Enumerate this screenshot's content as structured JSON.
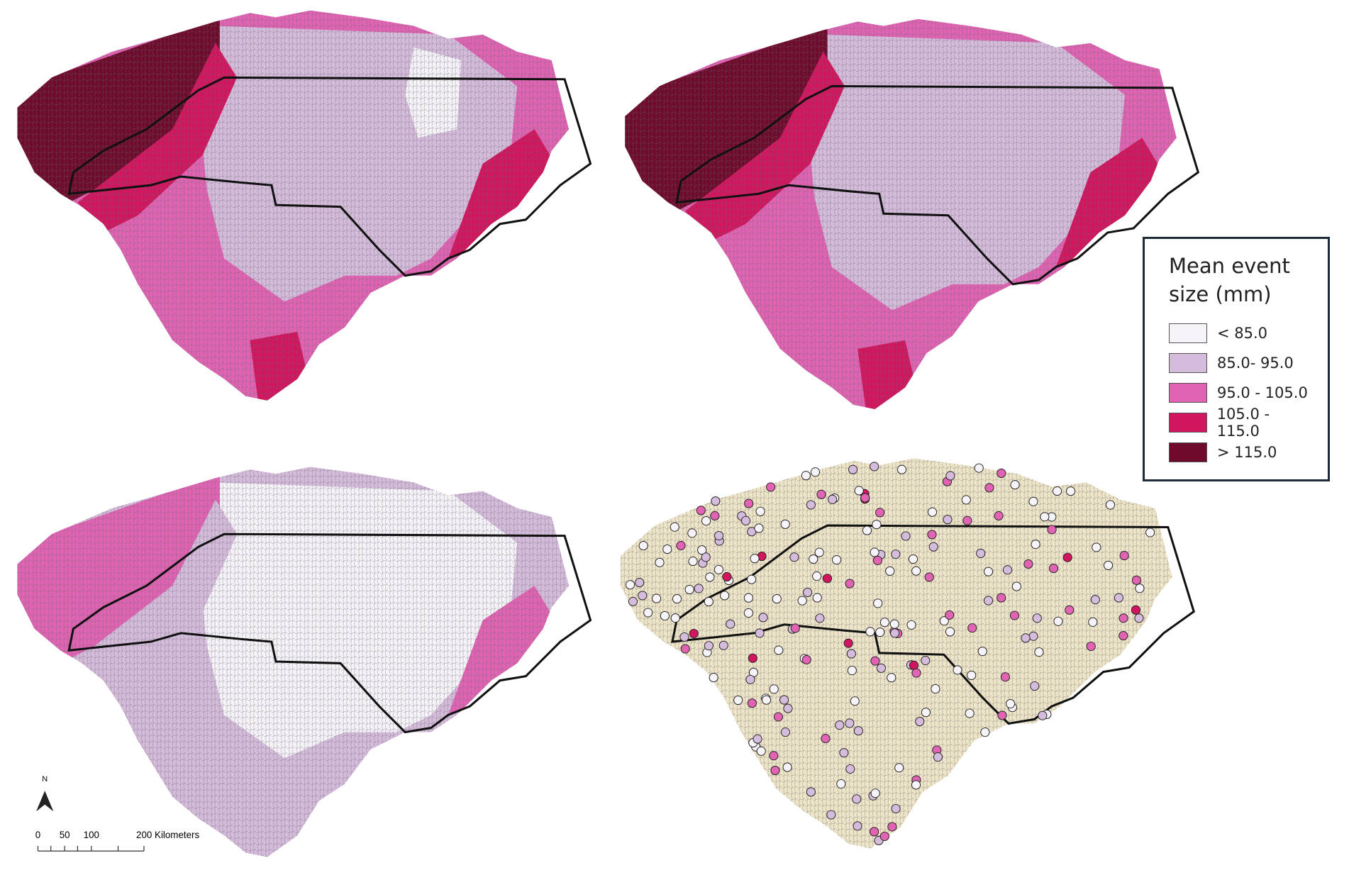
{
  "legend": {
    "title": "Mean event size (mm)",
    "items": [
      {
        "label": "< 85.0",
        "color": "#f6f4f9"
      },
      {
        "label": "85.0- 95.0",
        "color": "#d5bcdc"
      },
      {
        "label": "95.0 - 105.0",
        "color": "#e164b4"
      },
      {
        "label": "105.0 - 115.0",
        "color": "#d2155f"
      },
      {
        "label": "> 115.0",
        "color": "#6e0a2c"
      }
    ]
  },
  "scale_bar": {
    "labels": [
      "0",
      "50",
      "100",
      "200 Kilometers"
    ]
  },
  "north_arrow": {
    "label": "N"
  }
}
